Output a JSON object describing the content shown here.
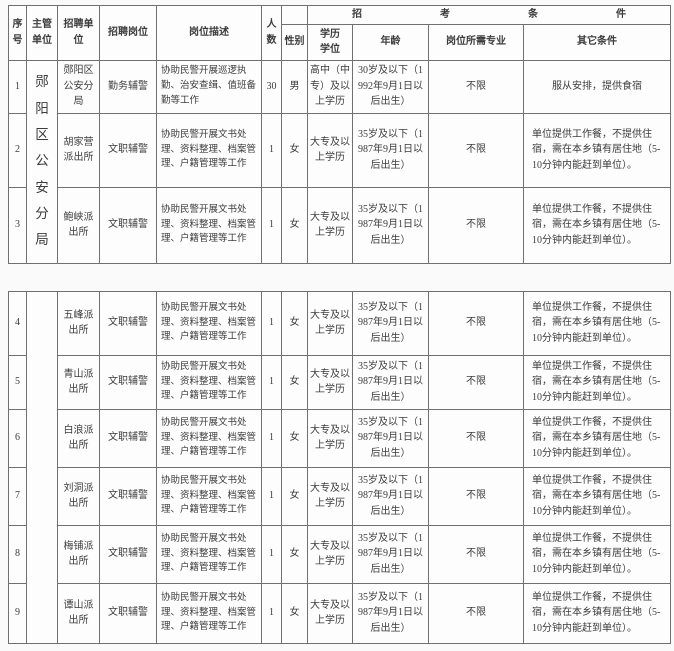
{
  "colors": {
    "page_bg": "#fafafa",
    "cell_bg": "#fdfdfd",
    "border": "#707070",
    "text": "#3c3c3c"
  },
  "header": {
    "seq": "序号",
    "supervisor": "主管单位",
    "recruit_unit": "招聘单位",
    "post": "招聘岗位",
    "desc": "岗位描述",
    "count": "人数",
    "conditions_group": "招考条件",
    "gender": "性别",
    "edu": "学历学位",
    "age": "年龄",
    "major": "岗位所需专业",
    "other": "其它条件"
  },
  "table1": {
    "supervisor": "郧阳区公安分局",
    "rows": [
      {
        "seq": "1",
        "unit": "郧阳区公安分局",
        "post": "勤务辅警",
        "desc": "协助民警开展巡逻执勤、治安查缉、值班备勤等工作",
        "count": "30",
        "gender": "男",
        "edu": "高中（中专）及以上学历",
        "age": "30岁及以下（1992年9月1日以后出生）",
        "major": "不限",
        "other": "服从安排，提供食宿"
      },
      {
        "seq": "2",
        "unit": "胡家营派出所",
        "post": "文职辅警",
        "desc": "协助民警开展文书处理、资料整理、档案管理、户籍管理等工作",
        "count": "1",
        "gender": "女",
        "edu": "大专及以上学历",
        "age": "35岁及以下（1987年9月1日以后出生）",
        "major": "不限",
        "other": "单位提供工作餐，不提供住宿，需在本乡镇有居住地（5-10分钟内能赶到单位）。"
      },
      {
        "seq": "3",
        "unit": "鲍峡派出所",
        "post": "文职辅警",
        "desc": "协助民警开展文书处理、资料整理、档案管理、户籍管理等工作",
        "count": "1",
        "gender": "女",
        "edu": "大专及以上学历",
        "age": "35岁及以下（1987年9月1日以后出生）",
        "major": "不限",
        "other": "单位提供工作餐，不提供住宿，需在本乡镇有居住地（5-10分钟内能赶到单位）。"
      }
    ]
  },
  "table2": {
    "supervisor": "",
    "rows": [
      {
        "seq": "4",
        "unit": "五峰派出所",
        "post": "文职辅警",
        "desc": "协助民警开展文书处理、资料整理、档案管理、户籍管理等工作",
        "count": "1",
        "gender": "女",
        "edu": "大专及以上学历",
        "age": "35岁及以下（1987年9月1日以后出生）",
        "major": "不限",
        "other": "单位提供工作餐，不提供住宿，需在本乡镇有居住地（5-10分钟内能赶到单位）。"
      },
      {
        "seq": "5",
        "unit": "青山派出所",
        "post": "文职辅警",
        "desc": "协助民警开展文书处理、资料整理、档案管理、户籍管理等工作",
        "count": "1",
        "gender": "女",
        "edu": "大专及以上学历",
        "age": "35岁及以下（1987年9月1日以后出生）",
        "major": "不限",
        "other": "单位提供工作餐，不提供住宿，需在本乡镇有居住地（5-10分钟内能赶到单位）。"
      },
      {
        "seq": "6",
        "unit": "白浪派出所",
        "post": "文职辅警",
        "desc": "协助民警开展文书处理、资料整理、档案管理、户籍管理等工作",
        "count": "1",
        "gender": "女",
        "edu": "大专及以上学历",
        "age": "35岁及以下（1987年9月1日以后出生）",
        "major": "不限",
        "other": "单位提供工作餐，不提供住宿，需在本乡镇有居住地（5-10分钟内能赶到单位）。"
      },
      {
        "seq": "7",
        "unit": "刘洞派出所",
        "post": "文职辅警",
        "desc": "协助民警开展文书处理、资料整理、档案管理、户籍管理等工作",
        "count": "1",
        "gender": "女",
        "edu": "大专及以上学历",
        "age": "35岁及以下（1987年9月1日以后出生）",
        "major": "不限",
        "other": "单位提供工作餐，不提供住宿，需在本乡镇有居住地（5-10分钟内能赶到单位）。"
      },
      {
        "seq": "8",
        "unit": "梅铺派出所",
        "post": "文职辅警",
        "desc": "协助民警开展文书处理、资料整理、档案管理、户籍管理等工作",
        "count": "1",
        "gender": "女",
        "edu": "大专及以上学历",
        "age": "35岁及以下（1987年9月1日以后出生）",
        "major": "不限",
        "other": "单位提供工作餐，不提供住宿，需在本乡镇有居住地（5-10分钟内能赶到单位）。"
      },
      {
        "seq": "9",
        "unit": "谭山派出所",
        "post": "文职辅警",
        "desc": "协助民警开展文书处理、资料整理、档案管理、户籍管理等工作",
        "count": "1",
        "gender": "女",
        "edu": "大专及以上学历",
        "age": "35岁及以下（1987年9月1日以后出生）",
        "major": "不限",
        "other": "单位提供工作餐，不提供住宿，需在本乡镇有居住地（5-10分钟内能赶到单位）。"
      }
    ]
  }
}
